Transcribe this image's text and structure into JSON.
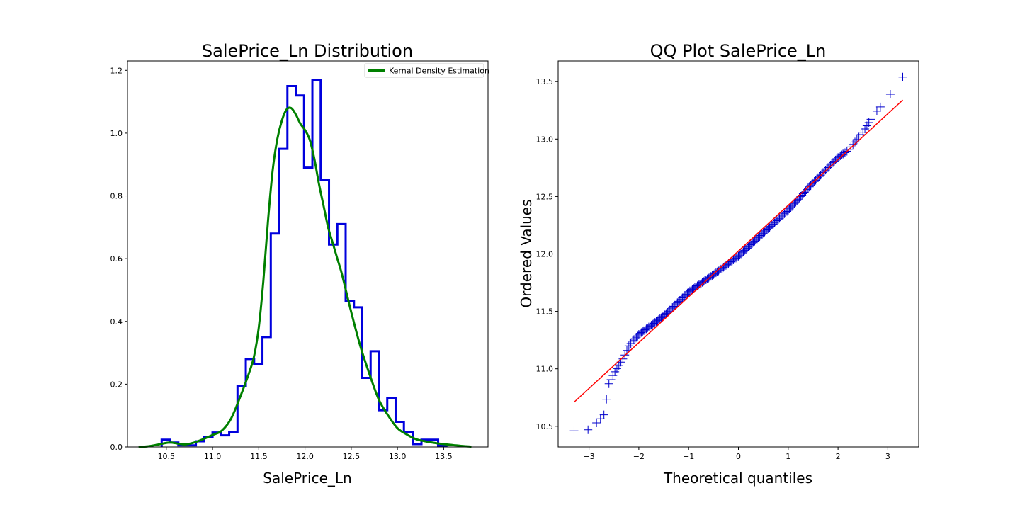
{
  "chart_data": [
    {
      "type": "histogram",
      "title": "SalePrice_Ln Distribution",
      "xlabel": "SalePrice_Ln",
      "ylabel": "",
      "xlim": [
        10.08,
        13.98
      ],
      "ylim": [
        0,
        1.23
      ],
      "xticks": [
        10.5,
        11.0,
        11.5,
        12.0,
        12.5,
        13.0,
        13.5
      ],
      "yticks": [
        0.0,
        0.2,
        0.4,
        0.6,
        0.8,
        1.0,
        1.2
      ],
      "xtick_labels": [
        "10.5",
        "11.0",
        "11.5",
        "12.0",
        "12.5",
        "13.0",
        "13.5"
      ],
      "ytick_labels": [
        "0.0",
        "0.2",
        "0.4",
        "0.6",
        "0.8",
        "1.0",
        "1.2"
      ],
      "grid": false,
      "legend_position": "top-right",
      "histogram": {
        "color": "#0000dd",
        "bin_edges": [
          10.45,
          10.54,
          10.63,
          10.72,
          10.82,
          10.91,
          11.0,
          11.09,
          11.18,
          11.27,
          11.36,
          11.45,
          11.54,
          11.63,
          11.72,
          11.81,
          11.9,
          11.99,
          12.08,
          12.17,
          12.26,
          12.35,
          12.44,
          12.53,
          12.62,
          12.71,
          12.8,
          12.89,
          12.98,
          13.07,
          13.17,
          13.26,
          13.35,
          13.44,
          13.53
        ],
        "density": [
          0.023,
          0.014,
          0.005,
          0.005,
          0.018,
          0.032,
          0.046,
          0.037,
          0.048,
          0.195,
          0.28,
          0.265,
          0.35,
          0.68,
          0.95,
          1.15,
          1.12,
          0.89,
          1.17,
          0.85,
          0.645,
          0.71,
          0.465,
          0.445,
          0.22,
          0.305,
          0.117,
          0.155,
          0.08,
          0.048,
          0.009,
          0.023,
          0.023,
          0.004
        ]
      },
      "series": [
        {
          "name": "Kernal Density Estimation",
          "color": "#008000",
          "x": [
            10.2,
            10.3,
            10.4,
            10.5,
            10.55,
            10.6,
            10.7,
            10.8,
            10.9,
            11.0,
            11.1,
            11.2,
            11.3,
            11.4,
            11.45,
            11.5,
            11.55,
            11.6,
            11.65,
            11.7,
            11.75,
            11.8,
            11.85,
            11.9,
            11.95,
            12.0,
            12.05,
            12.1,
            12.15,
            12.2,
            12.25,
            12.3,
            12.35,
            12.4,
            12.5,
            12.6,
            12.7,
            12.8,
            12.9,
            13.0,
            13.1,
            13.2,
            13.3,
            13.4,
            13.5,
            13.6,
            13.7,
            13.8
          ],
          "y": [
            0.0,
            0.002,
            0.007,
            0.013,
            0.014,
            0.012,
            0.008,
            0.014,
            0.025,
            0.038,
            0.052,
            0.09,
            0.16,
            0.24,
            0.29,
            0.38,
            0.53,
            0.72,
            0.88,
            0.98,
            1.04,
            1.075,
            1.08,
            1.06,
            1.03,
            1.01,
            0.98,
            0.92,
            0.84,
            0.77,
            0.7,
            0.65,
            0.6,
            0.55,
            0.43,
            0.32,
            0.23,
            0.15,
            0.1,
            0.06,
            0.04,
            0.025,
            0.018,
            0.013,
            0.009,
            0.006,
            0.003,
            0.001
          ]
        }
      ]
    },
    {
      "type": "scatter",
      "title": "QQ Plot SalePrice_Ln",
      "xlabel": "Theoretical quantiles",
      "ylabel": "Ordered Values",
      "xlim": [
        -3.62,
        3.62
      ],
      "ylim": [
        10.32,
        13.68
      ],
      "xticks": [
        -3,
        -2,
        -1,
        0,
        1,
        2,
        3
      ],
      "yticks": [
        10.5,
        11.0,
        11.5,
        12.0,
        12.5,
        13.0,
        13.5
      ],
      "xtick_labels": [
        "−3",
        "−2",
        "−1",
        "0",
        "1",
        "2",
        "3"
      ],
      "ytick_labels": [
        "10.5",
        "11.0",
        "11.5",
        "12.0",
        "12.5",
        "13.0",
        "13.5"
      ],
      "grid": false,
      "marker": "+",
      "marker_color": "#0000cc",
      "fit_line": {
        "color": "#ff0000",
        "x": [
          -3.3,
          3.3
        ],
        "y": [
          10.71,
          13.34
        ]
      },
      "quantile_curve": {
        "x": [
          -3.3,
          -3.0,
          -2.8,
          -2.7,
          -2.6,
          -2.5,
          -2.3,
          -2.2,
          -2.1,
          -2.0,
          -1.5,
          -1.0,
          -0.5,
          0.0,
          0.5,
          1.0,
          1.5,
          2.0,
          2.2,
          2.5,
          2.7,
          3.0,
          3.3
        ],
        "y": [
          10.46,
          10.47,
          10.55,
          10.6,
          10.87,
          10.96,
          11.1,
          11.2,
          11.25,
          11.3,
          11.46,
          11.67,
          11.82,
          11.98,
          12.18,
          12.38,
          12.62,
          12.84,
          12.9,
          13.06,
          13.2,
          13.36,
          13.54
        ]
      }
    }
  ]
}
